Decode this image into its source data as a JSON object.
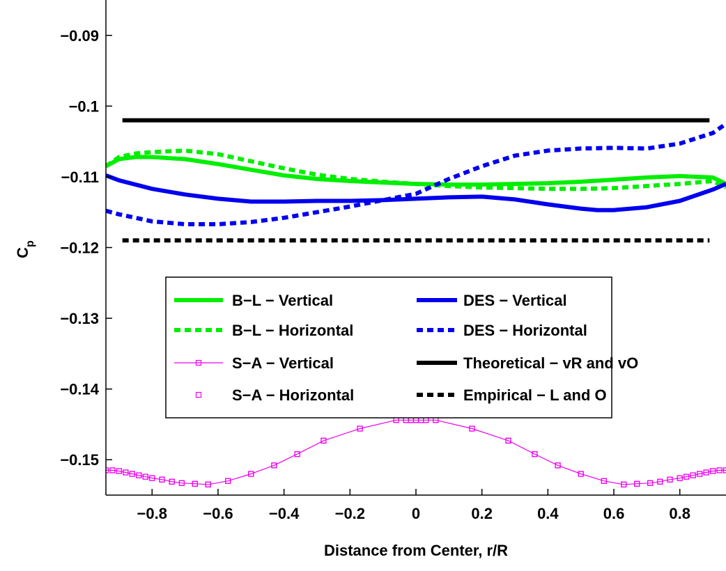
{
  "chart_data": {
    "type": "line",
    "title": "",
    "xlabel": "Distance from Center, r/R",
    "ylabel_main": "C",
    "ylabel_sub": "p",
    "xlim": [
      -0.94,
      0.94
    ],
    "ylim": [
      -0.155,
      -0.085
    ],
    "xticks": [
      -0.8,
      -0.6,
      -0.4,
      -0.2,
      0,
      0.2,
      0.4,
      0.6,
      0.8
    ],
    "xtick_labels": [
      "−0.8",
      "−0.6",
      "−0.4",
      "−0.2",
      "0",
      "0.2",
      "0.4",
      "0.6",
      "0.8"
    ],
    "yticks": [
      -0.09,
      -0.1,
      -0.11,
      -0.12,
      -0.13,
      -0.14,
      -0.15
    ],
    "ytick_labels": [
      "−0.09",
      "−0.1",
      "−0.11",
      "−0.12",
      "−0.13",
      "−0.14",
      "−0.15"
    ],
    "grid": false,
    "legend_position": "center",
    "series": [
      {
        "name": "B−L − Vertical",
        "color": "#00ee00",
        "style": "solid",
        "marker": "none",
        "x": [
          -0.94,
          -0.9,
          -0.85,
          -0.8,
          -0.7,
          -0.6,
          -0.5,
          -0.4,
          -0.3,
          -0.2,
          -0.1,
          0,
          0.1,
          0.2,
          0.3,
          0.4,
          0.5,
          0.6,
          0.7,
          0.8,
          0.9,
          0.94
        ],
        "y": [
          -0.1085,
          -0.1075,
          -0.1072,
          -0.1072,
          -0.1075,
          -0.1082,
          -0.109,
          -0.1098,
          -0.1103,
          -0.1106,
          -0.1108,
          -0.111,
          -0.1111,
          -0.1111,
          -0.111,
          -0.1109,
          -0.1107,
          -0.1104,
          -0.1101,
          -0.1099,
          -0.1101,
          -0.111
        ]
      },
      {
        "name": "B−L − Horizontal",
        "color": "#00ee00",
        "style": "dotted",
        "marker": "none",
        "x": [
          -0.94,
          -0.9,
          -0.85,
          -0.8,
          -0.7,
          -0.6,
          -0.5,
          -0.4,
          -0.3,
          -0.2,
          -0.1,
          0,
          0.1,
          0.2,
          0.3,
          0.4,
          0.5,
          0.6,
          0.7,
          0.8,
          0.9,
          0.94
        ],
        "y": [
          -0.1085,
          -0.1072,
          -0.1067,
          -0.1065,
          -0.1063,
          -0.1068,
          -0.1078,
          -0.1088,
          -0.1097,
          -0.1103,
          -0.1107,
          -0.111,
          -0.1113,
          -0.1115,
          -0.1116,
          -0.1117,
          -0.1117,
          -0.1116,
          -0.1113,
          -0.111,
          -0.1106,
          -0.1115
        ]
      },
      {
        "name": "S−A − Vertical",
        "color": "#ee00ee",
        "style": "solid",
        "marker": "square",
        "x": [
          -0.94,
          -0.92,
          -0.9,
          -0.88,
          -0.86,
          -0.84,
          -0.82,
          -0.8,
          -0.77,
          -0.74,
          -0.71,
          -0.67,
          -0.63,
          -0.57,
          -0.5,
          -0.43,
          -0.36,
          -0.28,
          -0.17,
          -0.06,
          -0.03,
          -0.015,
          0,
          0.015,
          0.03,
          0.06,
          0.17,
          0.28,
          0.36,
          0.43,
          0.5,
          0.57,
          0.63,
          0.67,
          0.71,
          0.74,
          0.77,
          0.8,
          0.82,
          0.84,
          0.86,
          0.88,
          0.9,
          0.92,
          0.94
        ],
        "y": [
          -0.1515,
          -0.1515,
          -0.1516,
          -0.1518,
          -0.152,
          -0.1522,
          -0.1524,
          -0.1526,
          -0.1528,
          -0.1531,
          -0.1533,
          -0.1534,
          -0.1535,
          -0.153,
          -0.152,
          -0.1508,
          -0.1492,
          -0.1473,
          -0.1456,
          -0.1444,
          -0.1444,
          -0.1444,
          -0.1444,
          -0.1444,
          -0.1444,
          -0.1444,
          -0.1456,
          -0.1473,
          -0.1492,
          -0.1508,
          -0.152,
          -0.153,
          -0.1535,
          -0.1534,
          -0.1533,
          -0.1531,
          -0.1528,
          -0.1526,
          -0.1524,
          -0.1522,
          -0.152,
          -0.1518,
          -0.1516,
          -0.1515,
          -0.1515
        ]
      },
      {
        "name": "S−A − Horizontal",
        "color": "#ee00ee",
        "style": "none",
        "marker": "square",
        "x": [
          -0.94,
          -0.92,
          -0.9,
          -0.88,
          -0.86,
          -0.84,
          -0.82,
          -0.8,
          -0.77,
          -0.74,
          -0.71,
          -0.67,
          -0.63,
          -0.57,
          -0.5,
          -0.43,
          -0.36,
          -0.28,
          -0.17,
          -0.06,
          -0.03,
          -0.015,
          0,
          0.015,
          0.03,
          0.06,
          0.17,
          0.28,
          0.36,
          0.43,
          0.5,
          0.57,
          0.63,
          0.67,
          0.71,
          0.74,
          0.77,
          0.8,
          0.82,
          0.84,
          0.86,
          0.88,
          0.9,
          0.92,
          0.94
        ],
        "y": [
          -0.1515,
          -0.1515,
          -0.1516,
          -0.1518,
          -0.152,
          -0.1522,
          -0.1524,
          -0.1526,
          -0.1528,
          -0.1531,
          -0.1533,
          -0.1534,
          -0.1535,
          -0.153,
          -0.152,
          -0.1508,
          -0.1492,
          -0.1473,
          -0.1456,
          -0.1444,
          -0.1444,
          -0.1444,
          -0.1444,
          -0.1444,
          -0.1444,
          -0.1444,
          -0.1456,
          -0.1473,
          -0.1492,
          -0.1508,
          -0.152,
          -0.153,
          -0.1535,
          -0.1534,
          -0.1533,
          -0.1531,
          -0.1528,
          -0.1526,
          -0.1524,
          -0.1522,
          -0.152,
          -0.1518,
          -0.1516,
          -0.1515,
          -0.1515
        ]
      },
      {
        "name": "DES − Vertical",
        "color": "#0000ee",
        "style": "solid",
        "marker": "none",
        "x": [
          -0.94,
          -0.9,
          -0.8,
          -0.7,
          -0.6,
          -0.5,
          -0.4,
          -0.3,
          -0.2,
          -0.1,
          0,
          0.1,
          0.2,
          0.3,
          0.4,
          0.5,
          0.55,
          0.6,
          0.7,
          0.8,
          0.9,
          0.94
        ],
        "y": [
          -0.1098,
          -0.1105,
          -0.1117,
          -0.1125,
          -0.1131,
          -0.1135,
          -0.1135,
          -0.1134,
          -0.1134,
          -0.1133,
          -0.1131,
          -0.1129,
          -0.1128,
          -0.1132,
          -0.1139,
          -0.1145,
          -0.1147,
          -0.1147,
          -0.1143,
          -0.1134,
          -0.1118,
          -0.111
        ]
      },
      {
        "name": "DES − Horizontal",
        "color": "#0000ee",
        "style": "dotted",
        "marker": "none",
        "x": [
          -0.94,
          -0.9,
          -0.8,
          -0.7,
          -0.6,
          -0.5,
          -0.4,
          -0.3,
          -0.2,
          -0.1,
          0,
          0.1,
          0.2,
          0.3,
          0.4,
          0.5,
          0.6,
          0.7,
          0.8,
          0.9,
          0.94
        ],
        "y": [
          -0.1148,
          -0.1153,
          -0.1163,
          -0.1167,
          -0.1167,
          -0.1164,
          -0.1158,
          -0.115,
          -0.1142,
          -0.1133,
          -0.1124,
          -0.1103,
          -0.1085,
          -0.107,
          -0.1063,
          -0.106,
          -0.1059,
          -0.106,
          -0.1053,
          -0.1038,
          -0.1025
        ]
      },
      {
        "name": "Theoretical − vR and vO",
        "color": "#000000",
        "style": "solid",
        "marker": "none",
        "x": [
          -0.89,
          0.89
        ],
        "y": [
          -0.102,
          -0.102
        ]
      },
      {
        "name": "Empirical − L and O",
        "color": "#000000",
        "style": "dotted",
        "marker": "none",
        "x": [
          -0.89,
          0.89
        ],
        "y": [
          -0.119,
          -0.119
        ]
      }
    ]
  }
}
